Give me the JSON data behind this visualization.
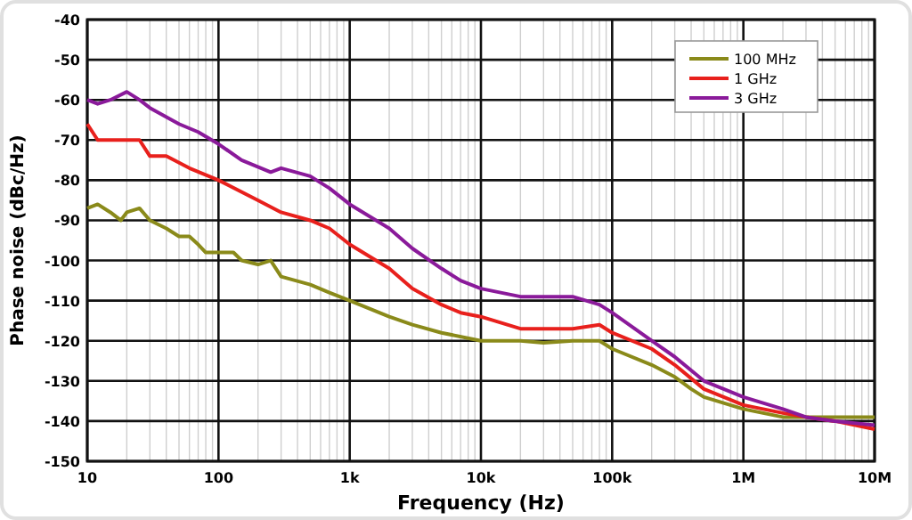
{
  "chart_data": {
    "type": "line",
    "xlabel": "Frequency (Hz)",
    "ylabel": "Phase noise (dBc/Hz)",
    "log": "x",
    "grid": true,
    "legend": "top right",
    "xlim": [
      10,
      10000000
    ],
    "xticks": [
      10,
      100,
      {
        "value": 1000,
        "label": "1k"
      },
      {
        "value": 10000,
        "label": "10k"
      },
      {
        "value": 100000,
        "label": "100k"
      },
      {
        "value": 1000000,
        "label": "1M"
      },
      {
        "value": 10000000,
        "label": "10M"
      }
    ],
    "ylim": [
      -150,
      -40
    ],
    "yticks": [
      -150,
      -140,
      -130,
      -120,
      -110,
      -100,
      -90,
      -80,
      -70,
      -60,
      -50,
      -40
    ],
    "series": [
      {
        "name": "100 MHz",
        "color": "#8a8a1a",
        "x": [
          10,
          12,
          15,
          18,
          20,
          25,
          30,
          40,
          50,
          60,
          70,
          80,
          100,
          130,
          150,
          200,
          250,
          300,
          500,
          700,
          1000,
          2000,
          3000,
          5000,
          10000,
          20000,
          30000,
          50000,
          80000,
          100000,
          200000,
          300000,
          400000,
          500000,
          1000000,
          2000000,
          3000000,
          5000000,
          10000000
        ],
        "values": [
          -87,
          -86,
          -88,
          -90,
          -88,
          -87,
          -90,
          -92,
          -94,
          -94,
          -96,
          -98,
          -98,
          -98,
          -100,
          -101,
          -100,
          -104,
          -106,
          -108,
          -110,
          -114,
          -116,
          -118,
          -120,
          -120,
          -120.5,
          -120,
          -120,
          -122,
          -126,
          -129,
          -132,
          -134,
          -137,
          -139,
          -139,
          -139,
          -139
        ]
      },
      {
        "name": "1 GHz",
        "color": "#e8201c",
        "x": [
          10,
          12,
          15,
          20,
          25,
          30,
          40,
          60,
          100,
          200,
          300,
          500,
          700,
          1000,
          2000,
          3000,
          5000,
          7000,
          10000,
          20000,
          50000,
          80000,
          100000,
          200000,
          300000,
          500000,
          1000000,
          2000000,
          3000000,
          5000000,
          10000000
        ],
        "values": [
          -66,
          -70,
          -70,
          -70,
          -70,
          -74,
          -74,
          -77,
          -80,
          -85,
          -88,
          -90,
          -92,
          -96,
          -102,
          -107,
          -111,
          -113,
          -114,
          -117,
          -117,
          -116,
          -118,
          -122,
          -126,
          -132,
          -136,
          -138,
          -139,
          -140,
          -142
        ]
      },
      {
        "name": "3 GHz",
        "color": "#8a1a9a",
        "x": [
          10,
          12,
          15,
          20,
          25,
          30,
          50,
          70,
          100,
          150,
          250,
          300,
          500,
          700,
          1000,
          2000,
          3000,
          5000,
          7000,
          10000,
          20000,
          50000,
          80000,
          100000,
          200000,
          300000,
          500000,
          1000000,
          2000000,
          3000000,
          5000000,
          10000000
        ],
        "values": [
          -60,
          -61,
          -60,
          -58,
          -60,
          -62,
          -66,
          -68,
          -71,
          -75,
          -78,
          -77,
          -79,
          -82,
          -86,
          -92,
          -97,
          -102,
          -105,
          -107,
          -109,
          -109,
          -111,
          -113,
          -120,
          -124,
          -130,
          -134,
          -137,
          -139,
          -140,
          -141
        ]
      }
    ]
  }
}
